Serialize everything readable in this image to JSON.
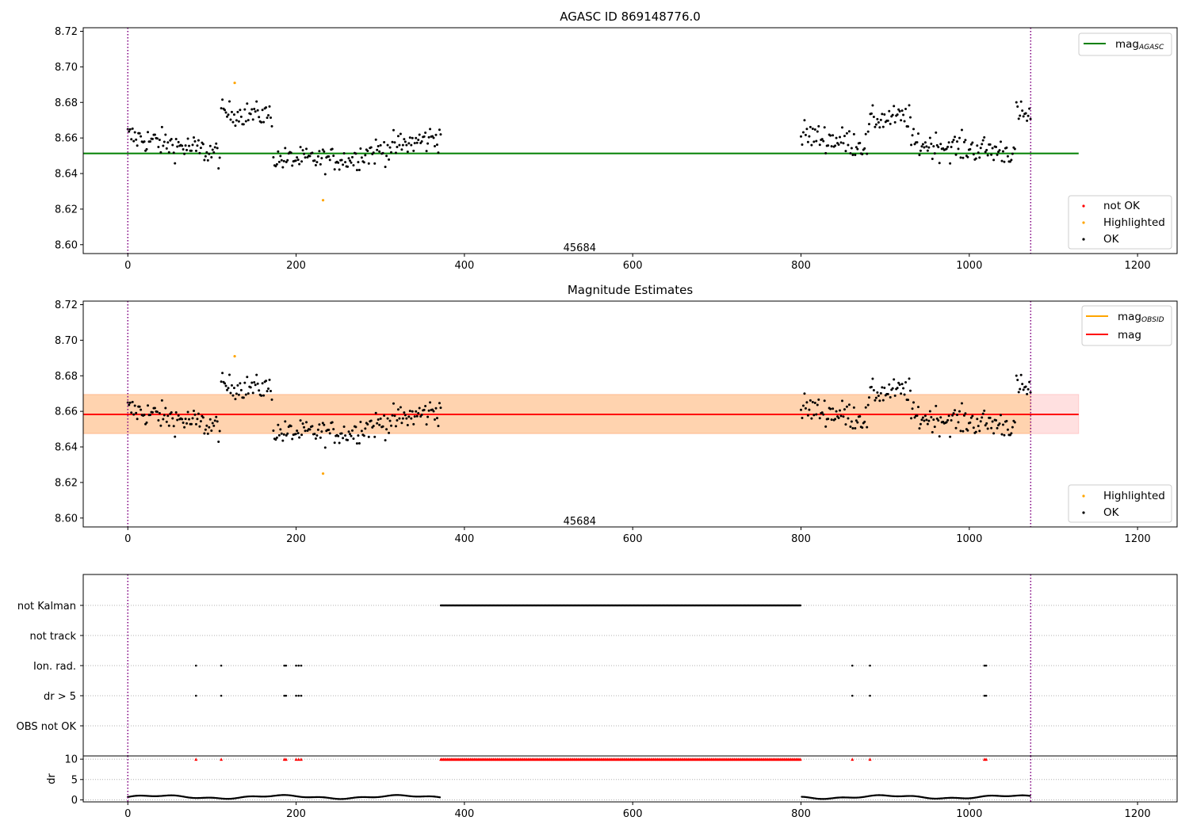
{
  "chart_data": [
    {
      "id": "agasc",
      "type": "scatter",
      "title": "AGASC ID 869148776.0",
      "xlim": [
        -53,
        1247
      ],
      "ylim": [
        8.595,
        8.722
      ],
      "xticks": [
        0,
        200,
        400,
        600,
        800,
        1000,
        1200
      ],
      "yticks": [
        8.6,
        8.62,
        8.64,
        8.66,
        8.68,
        8.7,
        8.72
      ],
      "annotation": {
        "text": "45684",
        "x": 537,
        "y": 8.599
      },
      "vlines": {
        "x": [
          0,
          1073
        ],
        "color": "#800080",
        "style": "dotted"
      },
      "hlines": [
        {
          "name": "mag",
          "sub": "AGASC",
          "y": 8.6513,
          "x": [
            -53,
            1130
          ],
          "color": "#008000"
        }
      ],
      "legend_lines": {
        "position": "top-right",
        "entries": [
          {
            "label": "mag",
            "sub": "AGASC",
            "color": "#008000"
          }
        ]
      },
      "legend_points": {
        "position": "bottom-right",
        "entries": [
          {
            "label": "not OK",
            "color": "#ff0000"
          },
          {
            "label": "Highlighted",
            "color": "#ffa500"
          },
          {
            "label": "OK",
            "color": "#000000"
          }
        ]
      },
      "highlighted": [
        {
          "x": 127,
          "y": 8.691
        },
        {
          "x": 232,
          "y": 8.625
        }
      ],
      "ok_segments": [
        {
          "x": [
            0,
            110
          ],
          "from": 8.661,
          "to": 8.651,
          "noise": 0.007
        },
        {
          "x": [
            111,
            172
          ],
          "from": 8.674,
          "to": 8.673,
          "noise": 0.006
        },
        {
          "x": [
            173,
            270
          ],
          "from": 8.648,
          "to": 8.648,
          "noise": 0.006
        },
        {
          "x": [
            271,
            372
          ],
          "from": 8.65,
          "to": 8.661,
          "noise": 0.007
        },
        {
          "x": [
            800,
            880
          ],
          "from": 8.662,
          "to": 8.656,
          "noise": 0.007
        },
        {
          "x": [
            881,
            930
          ],
          "from": 8.67,
          "to": 8.672,
          "noise": 0.006
        },
        {
          "x": [
            931,
            1055
          ],
          "from": 8.657,
          "to": 8.652,
          "noise": 0.007
        },
        {
          "x": [
            1056,
            1073
          ],
          "from": 8.674,
          "to": 8.672,
          "noise": 0.006
        }
      ]
    },
    {
      "id": "estimates",
      "type": "scatter",
      "title": "Magnitude Estimates",
      "xlim": [
        -53,
        1247
      ],
      "ylim": [
        8.595,
        8.722
      ],
      "xticks": [
        0,
        200,
        400,
        600,
        800,
        1000,
        1200
      ],
      "yticks": [
        8.6,
        8.62,
        8.64,
        8.66,
        8.68,
        8.7,
        8.72
      ],
      "annotation": {
        "text": "45684",
        "x": 537,
        "y": 8.599
      },
      "vlines": {
        "x": [
          0,
          1073
        ],
        "color": "#800080",
        "style": "dotted"
      },
      "bands": [
        {
          "name": "mag_band",
          "y": [
            8.6475,
            8.6695
          ],
          "x": [
            -53,
            1130
          ],
          "color": "#ff0000",
          "opacity": 0.12
        },
        {
          "name": "mag_obsid_band",
          "y": [
            8.6475,
            8.6695
          ],
          "x": [
            -53,
            1073
          ],
          "color": "#ffa500",
          "opacity": 0.22
        }
      ],
      "hlines": [
        {
          "name": "mag",
          "sub": "OBSID",
          "y": 8.6583,
          "x": [
            -53,
            1073
          ],
          "color": "#ffa500"
        },
        {
          "name": "mag",
          "sub": "",
          "y": 8.6583,
          "x": [
            -53,
            1130
          ],
          "color": "#ff0000"
        }
      ],
      "legend_lines": {
        "position": "top-right",
        "entries": [
          {
            "label": "mag",
            "sub": "OBSID",
            "color": "#ffa500"
          },
          {
            "label": "mag",
            "sub": "",
            "color": "#ff0000"
          }
        ]
      },
      "legend_points": {
        "position": "bottom-right",
        "entries": [
          {
            "label": "Highlighted",
            "color": "#ffa500"
          },
          {
            "label": "OK",
            "color": "#000000"
          }
        ]
      },
      "highlighted": [
        {
          "x": 127,
          "y": 8.691
        },
        {
          "x": 232,
          "y": 8.625
        }
      ]
    },
    {
      "id": "flags",
      "type": "scatter",
      "categories": [
        "not Kalman",
        "not track",
        "Ion. rad.",
        "dr > 5",
        "OBS not OK"
      ],
      "xlim": [
        -53,
        1247
      ],
      "xticks": [
        0,
        200,
        400,
        600,
        800,
        1000,
        1200
      ],
      "vlines": {
        "x": [
          0,
          1073
        ],
        "color": "#800080",
        "style": "dotted"
      },
      "series": [
        {
          "name": "not Kalman",
          "ranges": [
            [
              372,
              800
            ]
          ],
          "points": []
        },
        {
          "name": "not track",
          "ranges": [],
          "points": []
        },
        {
          "name": "Ion. rad.",
          "ranges": [],
          "points": [
            81,
            111,
            186,
            188,
            200,
            203,
            206,
            861,
            882,
            1018,
            1020
          ]
        },
        {
          "name": "dr > 5",
          "ranges": [],
          "points": [
            81,
            111,
            186,
            188,
            200,
            203,
            206,
            861,
            882,
            1018,
            1020
          ]
        },
        {
          "name": "OBS not OK",
          "ranges": [],
          "points": []
        }
      ]
    },
    {
      "id": "dr",
      "type": "scatter",
      "ylabel": "dr",
      "xlim": [
        -53,
        1247
      ],
      "ylim": [
        -0.5,
        10.8
      ],
      "yticks": [
        0,
        5,
        10
      ],
      "xticks": [
        0,
        200,
        400,
        600,
        800,
        1000,
        1200
      ],
      "vlines": {
        "x": [
          0,
          1073
        ],
        "color": "#800080",
        "style": "dotted"
      },
      "clipped_marker": {
        "y": 10,
        "color": "#ff0000",
        "ranges": [
          [
            372,
            800
          ]
        ],
        "points": [
          81,
          111,
          186,
          188,
          200,
          203,
          206,
          861,
          882,
          1018,
          1020
        ]
      },
      "ok_ranges": [
        [
          0,
          371
        ],
        [
          801,
          1073
        ]
      ],
      "ok_level": [
        0.2,
        1.2
      ]
    }
  ]
}
